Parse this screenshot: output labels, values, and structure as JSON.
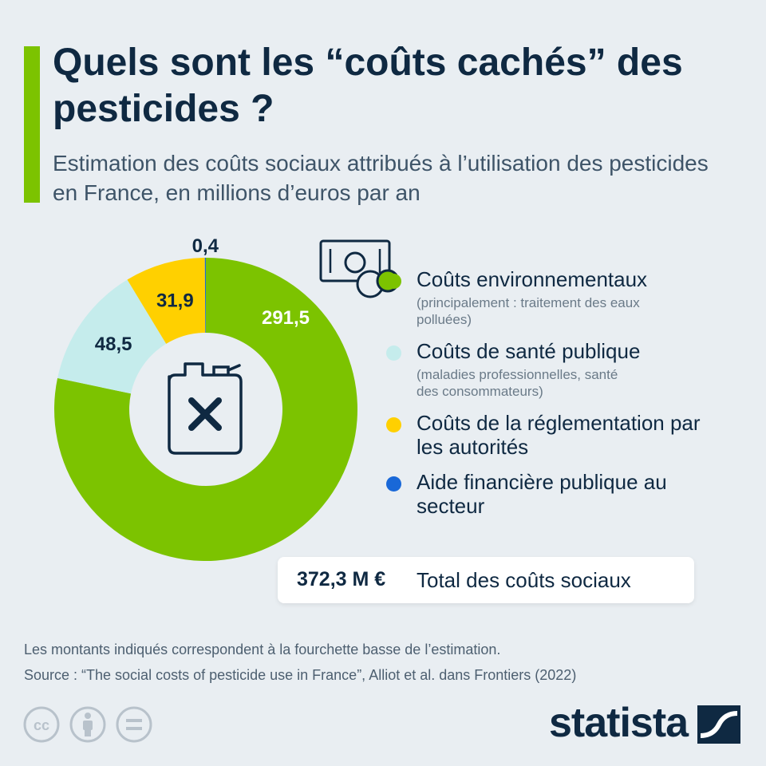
{
  "header": {
    "title": "Quels sont les “coûts cachés” des pesticides ?",
    "subtitle": "Estimation des coûts sociaux attribués à l’utilisation des pesticides en France, en millions d’euros par an"
  },
  "chart_data": {
    "type": "pie",
    "subtype": "donut",
    "title": "Quels sont les “coûts cachés” des pesticides ?",
    "unit": "millions d’euros par an",
    "series": [
      {
        "name": "Coûts environnementaux",
        "value": 291.5,
        "label": "291,5",
        "color": "#7cc300"
      },
      {
        "name": "Coûts de santé publique",
        "value": 48.5,
        "label": "48,5",
        "color": "#c5ecec"
      },
      {
        "name": "Coûts de la réglementation par les autorités",
        "value": 31.9,
        "label": "31,9",
        "color": "#ffd000"
      },
      {
        "name": "Aide financière publique au secteur",
        "value": 0.4,
        "label": "0,4",
        "color": "#1968d8"
      }
    ],
    "total": 372.3,
    "center_icon": "jerrycan-cross-icon"
  },
  "legend": [
    {
      "label": "Coûts environnementaux",
      "sub": "(principalement : traitement des eaux polluées)",
      "color": "#7cc300"
    },
    {
      "label": "Coûts de santé publique",
      "sub": "(maladies professionnelles, santé des consommateurs)",
      "color": "#c5ecec"
    },
    {
      "label": "Coûts de la réglementation par les autorités",
      "sub": "",
      "color": "#ffd000"
    },
    {
      "label": "Aide financière publique au secteur",
      "sub": "",
      "color": "#1968d8"
    }
  ],
  "legend_icon": "money-bill-coins-icon",
  "total": {
    "value": "372,3 M €",
    "label": "Total des coûts sociaux"
  },
  "footer": {
    "note": "Les montants indiqués correspondent à la fourchette basse de l’estimation.",
    "source": "Source : “The social costs of pesticide use in France”, Alliot et al. dans Frontiers (2022)"
  },
  "license_icons": [
    "cc-icon",
    "attribution-icon",
    "no-derivatives-icon"
  ],
  "brand": {
    "name": "statista",
    "logo_icon": "statista-logo-icon"
  },
  "colors": {
    "accent": "#7cc300",
    "text": "#0f2942",
    "background": "#e9eef2"
  }
}
